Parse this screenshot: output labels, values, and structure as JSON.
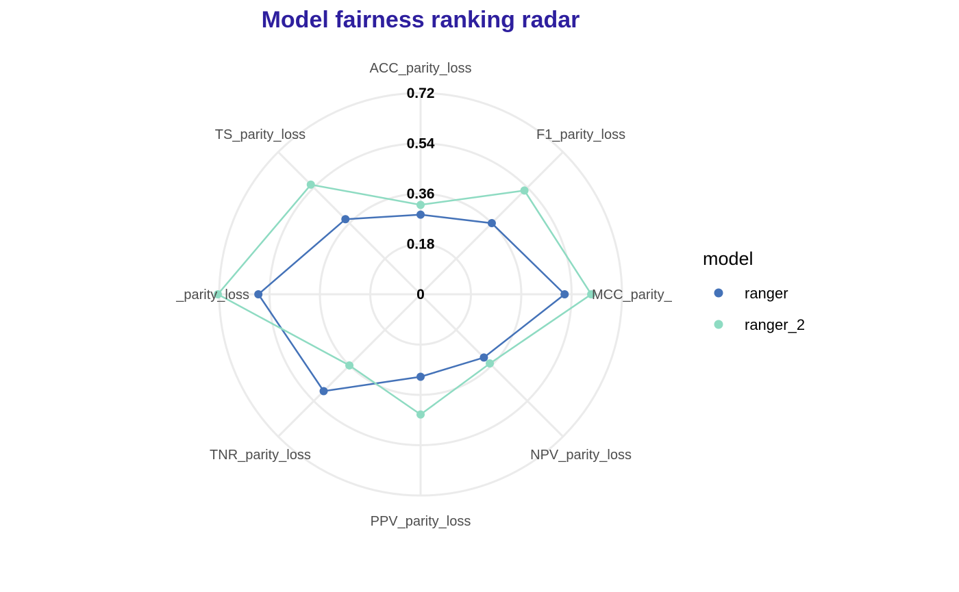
{
  "chart_data": {
    "type": "radar",
    "title": "Model fairness ranking radar",
    "axes": [
      "ACC_parity_loss",
      "F1_parity_loss",
      "MCC_parity_loss",
      "NPV_parity_loss",
      "PPV_parity_loss",
      "TNR_parity_loss",
      "TPR_parity_loss",
      "TS_parity_loss"
    ],
    "axis_labels_visible": [
      "ACC_parity_loss",
      "F1_parity_loss",
      "MCC_parity_",
      "NPV_parity_loss",
      "PPV_parity_loss",
      "TNR_parity_loss",
      "_parity_loss",
      "TS_parity_loss"
    ],
    "radial_ticks": [
      0,
      0.18,
      0.36,
      0.54,
      0.72
    ],
    "radial_tick_labels": [
      "0",
      "0.18",
      "0.36",
      "0.54",
      "0.72"
    ],
    "rmax": 0.72,
    "legend": {
      "title": "model",
      "position": "right"
    },
    "series": [
      {
        "name": "ranger",
        "color": "#4472b8",
        "values": [
          0.285,
          0.36,
          0.515,
          0.32,
          0.295,
          0.49,
          0.58,
          0.38
        ]
      },
      {
        "name": "ranger_2",
        "color": "#8edbc2",
        "values": [
          0.32,
          0.525,
          0.61,
          0.35,
          0.43,
          0.36,
          0.725,
          0.555
        ]
      }
    ],
    "grid": true,
    "colors": {
      "title": "#2e1f9e",
      "grid": "#ebebeb"
    }
  }
}
